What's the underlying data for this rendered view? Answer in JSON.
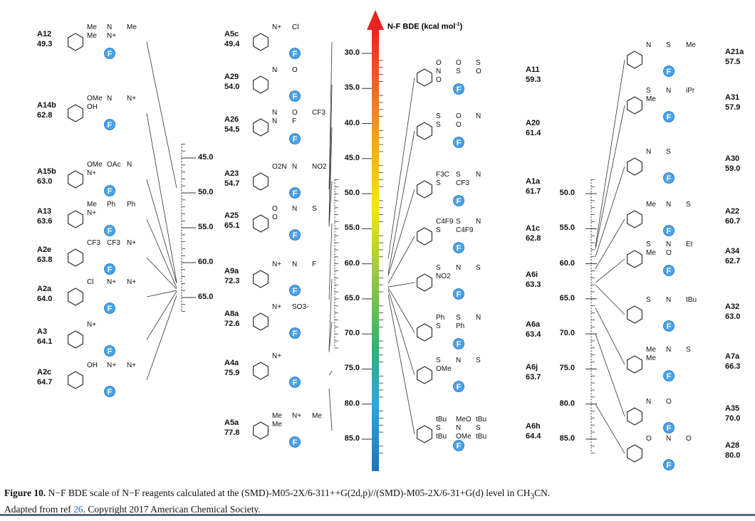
{
  "diagram": {
    "scale_title": "N-F BDE  (kcal mol",
    "scale_title_sup": "-1",
    "scale_title_end": ")",
    "colorbar_colors": [
      "#e8231f",
      "#f7941d",
      "#f5e51a",
      "#8dc63f",
      "#2bb673",
      "#27aae1",
      "#1c75bc"
    ],
    "badge_color": "#4aa3e8",
    "badge_label": "F",
    "left_scale": {
      "ticks": [
        "45.0",
        "50.0",
        "55.0",
        "60.0",
        "65.0"
      ],
      "range": [
        43,
        67
      ]
    },
    "center_scale": {
      "ticks": [
        "30.0",
        "35.0",
        "40.0",
        "45.0",
        "50.0",
        "55.0",
        "60.0",
        "65.0",
        "70.0",
        "75.0",
        "80.0",
        "85.0"
      ]
    },
    "right_scale": {
      "ticks": [
        "50.0",
        "55.0",
        "60.0",
        "65.0",
        "70.0",
        "75.0",
        "80.0",
        "85.0"
      ],
      "range": [
        48,
        87
      ]
    },
    "compounds_left": [
      {
        "id": "A12",
        "bde": "49.3",
        "frags": [
          "Me",
          "N",
          "Me",
          "Me",
          "N+"
        ]
      },
      {
        "id": "A14b",
        "bde": "62.8",
        "frags": [
          "OMe",
          "N",
          "N+",
          "OH"
        ]
      },
      {
        "id": "A15b",
        "bde": "63.0",
        "frags": [
          "OMe",
          "OAc",
          "N",
          "N+"
        ]
      },
      {
        "id": "A13",
        "bde": "63.6",
        "frags": [
          "Me",
          "Ph",
          "Ph",
          "N+"
        ]
      },
      {
        "id": "A2e",
        "bde": "63.8",
        "frags": [
          "CF3",
          "CF3",
          "N+"
        ]
      },
      {
        "id": "A2a",
        "bde": "64.0",
        "frags": [
          "Cl",
          "N+",
          "N+"
        ]
      },
      {
        "id": "A3",
        "bde": "64.1",
        "frags": [
          "N+"
        ]
      },
      {
        "id": "A2c",
        "bde": "64.7",
        "frags": [
          "OH",
          "N+",
          "N+"
        ]
      }
    ],
    "compounds_midleft": [
      {
        "id": "A5c",
        "bde": "49.4",
        "frags": [
          "N+",
          "Cl"
        ]
      },
      {
        "id": "A29",
        "bde": "54.0",
        "frags": [
          "N",
          "O"
        ]
      },
      {
        "id": "A26",
        "bde": "54.5",
        "frags": [
          "N",
          "O",
          "CF3",
          "N",
          "F"
        ]
      },
      {
        "id": "A23",
        "bde": "54.7",
        "frags": [
          "O2N",
          "N",
          "NO2"
        ]
      },
      {
        "id": "A25",
        "bde": "65.1",
        "frags": [
          "O",
          "N",
          "S",
          "O"
        ]
      },
      {
        "id": "A9a",
        "bde": "72.3",
        "frags": [
          "N+",
          "N",
          "F"
        ]
      },
      {
        "id": "A8a",
        "bde": "72.6",
        "frags": [
          "N+",
          "SO3-"
        ]
      },
      {
        "id": "A4a",
        "bde": "75.9",
        "frags": [
          "N+"
        ]
      },
      {
        "id": "A5a",
        "bde": "77.8",
        "frags": [
          "Me",
          "N+",
          "Me",
          "Me"
        ]
      }
    ],
    "compounds_midright": [
      {
        "id": "A11",
        "bde": "59.3",
        "frags": [
          "O",
          "O",
          "S",
          "N",
          "S",
          "O",
          "O"
        ]
      },
      {
        "id": "A20",
        "bde": "61.4",
        "frags": [
          "S",
          "O",
          "N",
          "S",
          "O"
        ]
      },
      {
        "id": "A1a",
        "bde": "61.7",
        "frags": [
          "F3C",
          "S",
          "N",
          "S",
          "CF3"
        ]
      },
      {
        "id": "A1c",
        "bde": "62.8",
        "frags": [
          "C4F9",
          "S",
          "N",
          "S",
          "C4F9"
        ]
      },
      {
        "id": "A6i",
        "bde": "63.3",
        "frags": [
          "S",
          "N",
          "S",
          "NO2"
        ]
      },
      {
        "id": "A6a",
        "bde": "63.4",
        "frags": [
          "Ph",
          "S",
          "N",
          "S",
          "Ph"
        ]
      },
      {
        "id": "A6j",
        "bde": "63.7",
        "frags": [
          "S",
          "N",
          "S",
          "OMe"
        ]
      },
      {
        "id": "A6h",
        "bde": "64.4",
        "frags": [
          "tBu",
          "MeO",
          "tBu",
          "S",
          "N",
          "S",
          "tBu",
          "OMe",
          "tBu"
        ]
      }
    ],
    "compounds_right": [
      {
        "id": "A21a",
        "bde": "57.5",
        "frags": [
          "N",
          "S",
          "Me"
        ]
      },
      {
        "id": "A31",
        "bde": "57.9",
        "frags": [
          "S",
          "N",
          "iPr",
          "Me"
        ]
      },
      {
        "id": "A30",
        "bde": "59.0",
        "frags": [
          "N",
          "S"
        ]
      },
      {
        "id": "A22",
        "bde": "60.7",
        "frags": [
          "Me",
          "N",
          "S"
        ]
      },
      {
        "id": "A34",
        "bde": "62.7",
        "frags": [
          "S",
          "N",
          "Et",
          "Me",
          "O"
        ]
      },
      {
        "id": "A32",
        "bde": "63.0",
        "frags": [
          "S",
          "N",
          "tBu"
        ]
      },
      {
        "id": "A7a",
        "bde": "66.3",
        "frags": [
          "Me",
          "N",
          "S",
          "Me"
        ]
      },
      {
        "id": "A35",
        "bde": "70.0",
        "frags": [
          "N",
          "O"
        ]
      },
      {
        "id": "A28",
        "bde": "80.0",
        "frags": [
          "O",
          "N",
          "O"
        ]
      }
    ]
  },
  "caption": {
    "figure_label": "Figure 10.",
    "text": " N−F BDE scale of N−F reagents calculated at the (SMD)-M05-2X/6-311++G(2d,p)//(SMD)-M05-2X/6-31+G(d) level in CH",
    "sub": "3",
    "text_end": "CN.",
    "line2_start": "Adapted from ref ",
    "ref": "26",
    "line2_end": ". Copyright 2017 American Chemical Society."
  }
}
